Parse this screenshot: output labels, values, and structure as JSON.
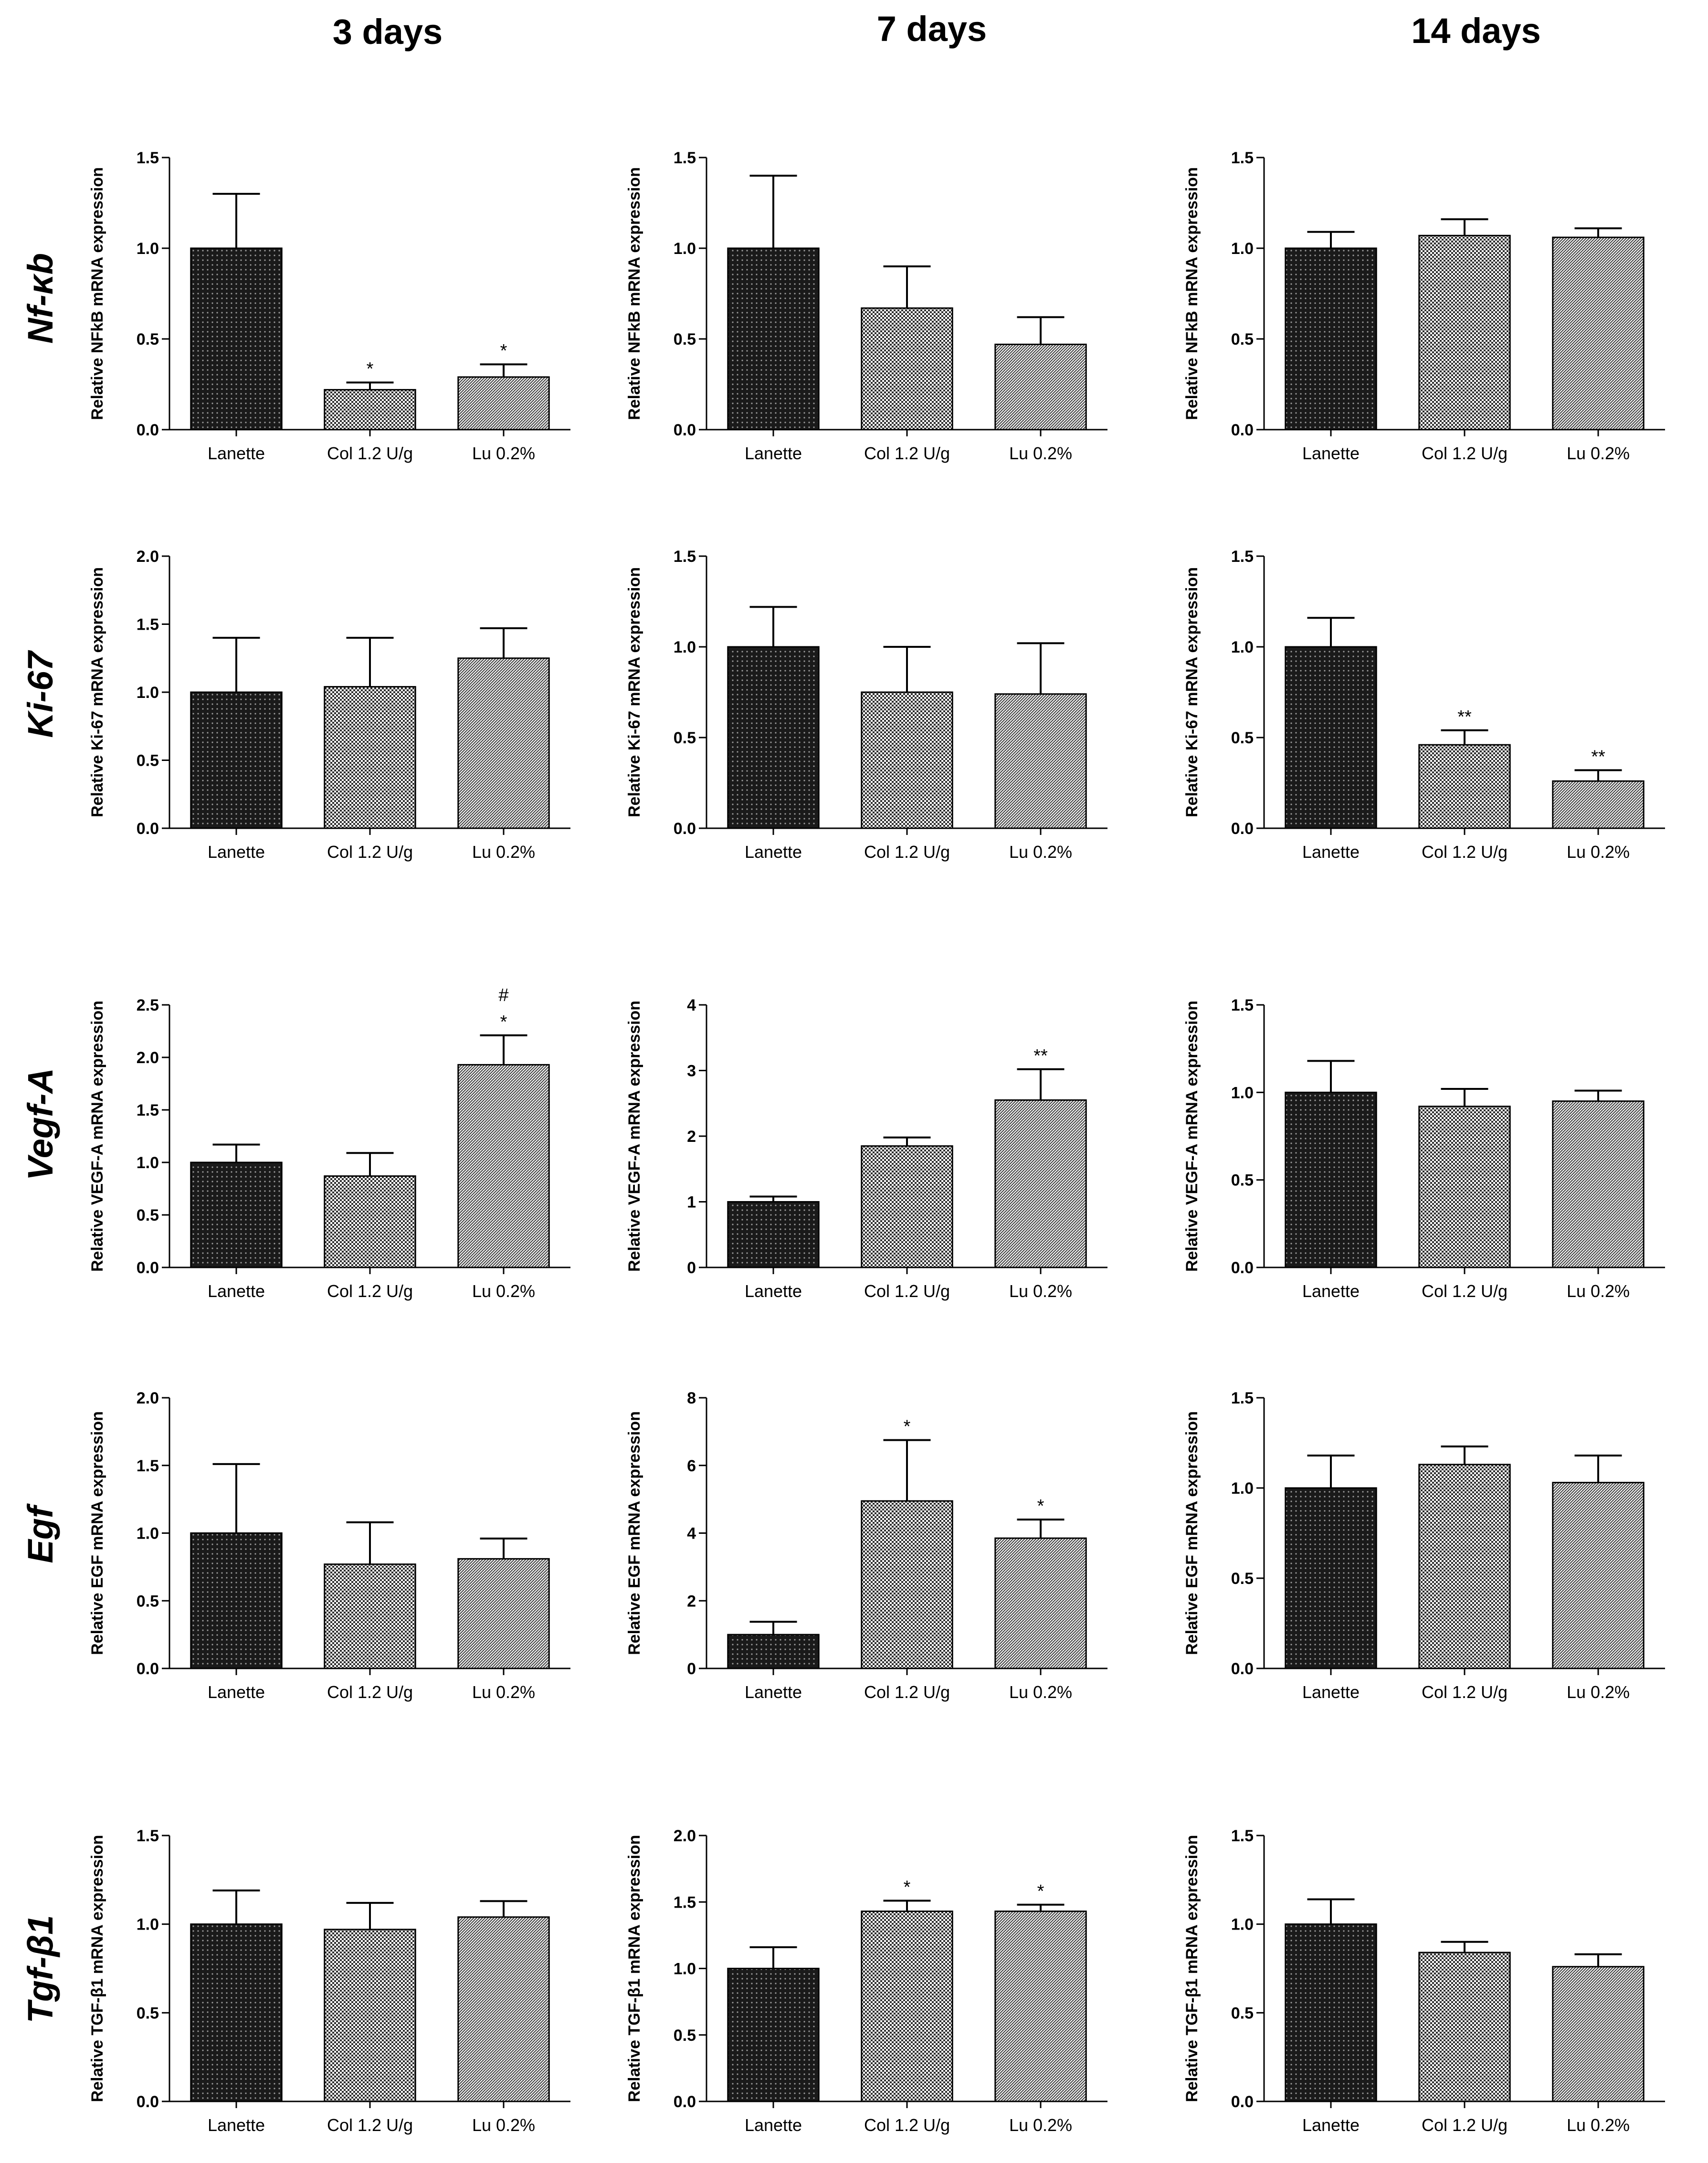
{
  "figure": {
    "column_titles": [
      "3 days",
      "7 days",
      "14 days"
    ],
    "row_titles": [
      "Nf-κb",
      "Ki-67",
      "Vegf-A",
      "Egf",
      "Tgf-β1"
    ]
  },
  "chart_data": [
    {
      "type": "bar",
      "row": 0,
      "col": 0,
      "title": "",
      "xlabel": "",
      "ylabel": "Relative NFkB mRNA expression",
      "categories": [
        "Lanette",
        "Col 1.2 U/g",
        "Lu 0.2%"
      ],
      "values": [
        1.0,
        0.22,
        0.29
      ],
      "errors": [
        0.3,
        0.04,
        0.07
      ],
      "annotations": [
        "",
        "*",
        "*"
      ],
      "ylim": [
        0,
        1.5
      ],
      "yticks": [
        "0.0",
        "0.5",
        "1.0",
        "1.5"
      ]
    },
    {
      "type": "bar",
      "row": 0,
      "col": 1,
      "title": "",
      "xlabel": "",
      "ylabel": "Relative NFkB mRNA expression",
      "categories": [
        "Lanette",
        "Col 1.2 U/g",
        "Lu 0.2%"
      ],
      "values": [
        1.0,
        0.67,
        0.47
      ],
      "errors": [
        0.4,
        0.23,
        0.15
      ],
      "annotations": [
        "",
        "",
        ""
      ],
      "ylim": [
        0,
        1.5
      ],
      "yticks": [
        "0.0",
        "0.5",
        "1.0",
        "1.5"
      ]
    },
    {
      "type": "bar",
      "row": 0,
      "col": 2,
      "title": "",
      "xlabel": "",
      "ylabel": "Relative NFkB mRNA expression",
      "categories": [
        "Lanette",
        "Col 1.2 U/g",
        "Lu 0.2%"
      ],
      "values": [
        1.0,
        1.07,
        1.06
      ],
      "errors": [
        0.09,
        0.09,
        0.05
      ],
      "annotations": [
        "",
        "",
        ""
      ],
      "ylim": [
        0,
        1.5
      ],
      "yticks": [
        "0.0",
        "0.5",
        "1.0",
        "1.5"
      ]
    },
    {
      "type": "bar",
      "row": 1,
      "col": 0,
      "title": "",
      "xlabel": "",
      "ylabel": "Relative Ki-67 mRNA expression",
      "categories": [
        "Lanette",
        "Col 1.2 U/g",
        "Lu 0.2%"
      ],
      "values": [
        1.0,
        1.04,
        1.25
      ],
      "errors": [
        0.4,
        0.36,
        0.22
      ],
      "annotations": [
        "",
        "",
        ""
      ],
      "ylim": [
        0,
        2.0
      ],
      "yticks": [
        "0.0",
        "0.5",
        "1.0",
        "1.5",
        "2.0"
      ]
    },
    {
      "type": "bar",
      "row": 1,
      "col": 1,
      "title": "",
      "xlabel": "",
      "ylabel": "Relative Ki-67 mRNA expression",
      "categories": [
        "Lanette",
        "Col 1.2 U/g",
        "Lu 0.2%"
      ],
      "values": [
        1.0,
        0.75,
        0.74
      ],
      "errors": [
        0.22,
        0.25,
        0.28
      ],
      "annotations": [
        "",
        "",
        ""
      ],
      "ylim": [
        0,
        1.5
      ],
      "yticks": [
        "0.0",
        "0.5",
        "1.0",
        "1.5"
      ]
    },
    {
      "type": "bar",
      "row": 1,
      "col": 2,
      "title": "",
      "xlabel": "",
      "ylabel": "Relative Ki-67 mRNA expression",
      "categories": [
        "Lanette",
        "Col 1.2 U/g",
        "Lu 0.2%"
      ],
      "values": [
        1.0,
        0.46,
        0.26
      ],
      "errors": [
        0.16,
        0.08,
        0.06
      ],
      "annotations": [
        "",
        "**",
        "**"
      ],
      "ylim": [
        0,
        1.5
      ],
      "yticks": [
        "0.0",
        "0.5",
        "1.0",
        "1.5"
      ]
    },
    {
      "type": "bar",
      "row": 2,
      "col": 0,
      "title": "",
      "xlabel": "",
      "ylabel": "Relative VEGF-A mRNA expression",
      "categories": [
        "Lanette",
        "Col 1.2 U/g",
        "Lu 0.2%"
      ],
      "values": [
        1.0,
        0.87,
        1.93
      ],
      "errors": [
        0.17,
        0.22,
        0.28
      ],
      "annotations": [
        "",
        "",
        "#\n*"
      ],
      "ylim": [
        0,
        2.5
      ],
      "yticks": [
        "0.0",
        "0.5",
        "1.0",
        "1.5",
        "2.0",
        "2.5"
      ]
    },
    {
      "type": "bar",
      "row": 2,
      "col": 1,
      "title": "",
      "xlabel": "",
      "ylabel": "Relative VEGF-A mRNA expression",
      "categories": [
        "Lanette",
        "Col 1.2 U/g",
        "Lu 0.2%"
      ],
      "values": [
        1.0,
        1.85,
        2.55
      ],
      "errors": [
        0.08,
        0.13,
        0.47
      ],
      "annotations": [
        "",
        "",
        "**"
      ],
      "ylim": [
        0,
        4
      ],
      "yticks": [
        "0",
        "1",
        "2",
        "3",
        "4"
      ]
    },
    {
      "type": "bar",
      "row": 2,
      "col": 2,
      "title": "",
      "xlabel": "",
      "ylabel": "Relative VEGF-A mRNA expression",
      "categories": [
        "Lanette",
        "Col 1.2 U/g",
        "Lu 0.2%"
      ],
      "values": [
        1.0,
        0.92,
        0.95
      ],
      "errors": [
        0.18,
        0.1,
        0.06
      ],
      "annotations": [
        "",
        "",
        ""
      ],
      "ylim": [
        0,
        1.5
      ],
      "yticks": [
        "0.0",
        "0.5",
        "1.0",
        "1.5"
      ]
    },
    {
      "type": "bar",
      "row": 3,
      "col": 0,
      "title": "",
      "xlabel": "",
      "ylabel": "Relative EGF mRNA expression",
      "categories": [
        "Lanette",
        "Col 1.2 U/g",
        "Lu 0.2%"
      ],
      "values": [
        1.0,
        0.77,
        0.81
      ],
      "errors": [
        0.51,
        0.31,
        0.15
      ],
      "annotations": [
        "",
        "",
        ""
      ],
      "ylim": [
        0,
        2.0
      ],
      "yticks": [
        "0.0",
        "0.5",
        "1.0",
        "1.5",
        "2.0"
      ]
    },
    {
      "type": "bar",
      "row": 3,
      "col": 1,
      "title": "",
      "xlabel": "",
      "ylabel": "Relative EGF mRNA expression",
      "categories": [
        "Lanette",
        "Col 1.2 U/g",
        "Lu 0.2%"
      ],
      "values": [
        1.0,
        4.95,
        3.85
      ],
      "errors": [
        0.38,
        1.8,
        0.55
      ],
      "annotations": [
        "",
        "*",
        "*"
      ],
      "ylim": [
        0,
        8
      ],
      "yticks": [
        "0",
        "2",
        "4",
        "6",
        "8"
      ]
    },
    {
      "type": "bar",
      "row": 3,
      "col": 2,
      "title": "",
      "xlabel": "",
      "ylabel": "Relative EGF mRNA expression",
      "categories": [
        "Lanette",
        "Col 1.2 U/g",
        "Lu 0.2%"
      ],
      "values": [
        1.0,
        1.13,
        1.03
      ],
      "errors": [
        0.18,
        0.1,
        0.15
      ],
      "annotations": [
        "",
        "",
        ""
      ],
      "ylim": [
        0,
        1.5
      ],
      "yticks": [
        "0.0",
        "0.5",
        "1.0",
        "1.5"
      ]
    },
    {
      "type": "bar",
      "row": 4,
      "col": 0,
      "title": "",
      "xlabel": "",
      "ylabel": "Relative TGF-β1 mRNA expression",
      "categories": [
        "Lanette",
        "Col 1.2 U/g",
        "Lu 0.2%"
      ],
      "values": [
        1.0,
        0.97,
        1.04
      ],
      "errors": [
        0.19,
        0.15,
        0.09
      ],
      "annotations": [
        "",
        "",
        ""
      ],
      "ylim": [
        0,
        1.5
      ],
      "yticks": [
        "0.0",
        "0.5",
        "1.0",
        "1.5"
      ]
    },
    {
      "type": "bar",
      "row": 4,
      "col": 1,
      "title": "",
      "xlabel": "",
      "ylabel": "Relative TGF-β1 mRNA expression",
      "categories": [
        "Lanette",
        "Col 1.2 U/g",
        "Lu 0.2%"
      ],
      "values": [
        1.0,
        1.43,
        1.43
      ],
      "errors": [
        0.16,
        0.08,
        0.05
      ],
      "annotations": [
        "",
        "*",
        "*"
      ],
      "ylim": [
        0,
        2.0
      ],
      "yticks": [
        "0.0",
        "0.5",
        "1.0",
        "1.5",
        "2.0"
      ]
    },
    {
      "type": "bar",
      "row": 4,
      "col": 2,
      "title": "",
      "xlabel": "",
      "ylabel": "Relative TGF-β1 mRNA expression",
      "categories": [
        "Lanette",
        "Col 1.2 U/g",
        "Lu 0.2%"
      ],
      "values": [
        1.0,
        0.84,
        0.76
      ],
      "errors": [
        0.14,
        0.06,
        0.07
      ],
      "annotations": [
        "",
        "",
        ""
      ],
      "ylim": [
        0,
        1.5
      ],
      "yticks": [
        "0.0",
        "0.5",
        "1.0",
        "1.5"
      ]
    }
  ]
}
